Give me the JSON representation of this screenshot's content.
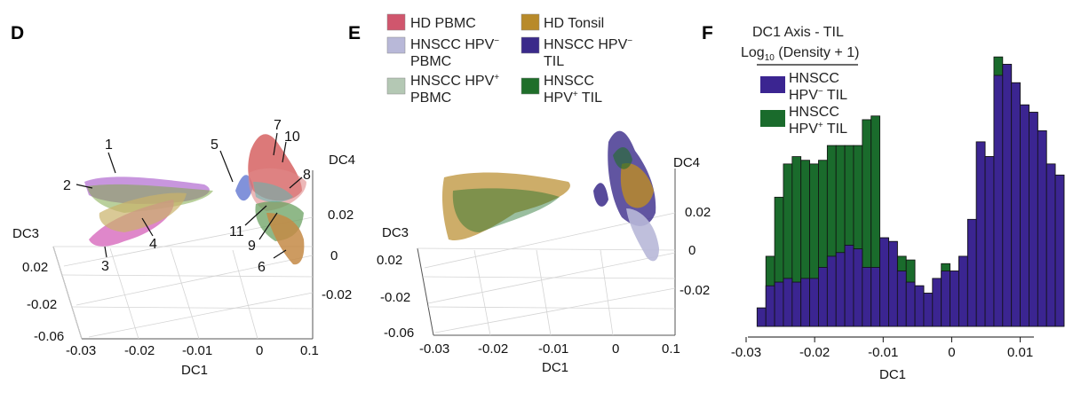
{
  "panels": {
    "d": {
      "letter": "D"
    },
    "e": {
      "letter": "E"
    },
    "f": {
      "letter": "F"
    }
  },
  "axes3d": {
    "dc1_label": "DC1",
    "dc3_label": "DC3",
    "dc4_label": "DC4",
    "dc1_ticks": [
      "-0.03",
      "-0.02",
      "-0.01",
      "0",
      "0.1"
    ],
    "dc3_ticks": [
      "0.02",
      "-0.02",
      "-0.06"
    ],
    "dc4_ticks": [
      "0.02",
      "0",
      "-0.02"
    ]
  },
  "cluster_labels": [
    "1",
    "2",
    "3",
    "4",
    "5",
    "6",
    "7",
    "8",
    "9",
    "10",
    "11"
  ],
  "legend_e": {
    "hd_pbmc": {
      "label": "HD PBMC",
      "color": "#d0566d"
    },
    "hd_tonsil": {
      "label": "HD Tonsil",
      "color": "#b88a2a"
    },
    "hpvneg_pbmc": {
      "line1": "HNSCC HPV",
      "sup": "−",
      "line2": "PBMC",
      "color": "#b8b8d8"
    },
    "hpvneg_til": {
      "line1": "HNSCC HPV",
      "sup": "−",
      "line2": "TIL",
      "color": "#3a2a8a"
    },
    "hpvpos_pbmc": {
      "line1": "HNSCC HPV",
      "sup": "+",
      "line2": "PBMC",
      "color": "#b4c8b4"
    },
    "hpvpos_til": {
      "line1": "HNSCC",
      "line2": "HPV",
      "sup": "+",
      "line2b": " TIL",
      "color": "#1f6e2a"
    }
  },
  "chart_data": {
    "type": "bar",
    "title": "DC1 Axis - TIL",
    "subtitle_pre": "Log",
    "subtitle_sub": "10",
    "subtitle_post": " (Density + 1)",
    "xlabel": "DC1",
    "ylabel": "",
    "xlim": [
      -0.03,
      0.012
    ],
    "x_ticks": [
      "-0.03",
      "-0.02",
      "-0.01",
      "0",
      "0.01"
    ],
    "legend": [
      {
        "line1": "HNSCC",
        "line2": "HPV",
        "sup": "−",
        "line2b": " TIL",
        "color": "#3b2591"
      },
      {
        "line1": "HNSCC",
        "line2": "HPV",
        "sup": "+",
        "line2b": " TIL",
        "color": "#1a6b2c"
      }
    ],
    "bin_width": 0.00128,
    "bin_start": -0.0284,
    "series": [
      {
        "name": "HNSCC HPV− TIL",
        "color": "#3b2591",
        "values": [
          0.5,
          1.1,
          1.2,
          1.3,
          1.2,
          1.3,
          1.3,
          1.6,
          1.9,
          2.0,
          2.2,
          2.1,
          1.6,
          1.6,
          2.4,
          2.3,
          1.5,
          1.2,
          1.1,
          0.9,
          1.3,
          1.5,
          1.5,
          1.9,
          2.9,
          5.0,
          4.6,
          6.8,
          7.1,
          6.6,
          6.0,
          5.8,
          5.3,
          4.4,
          4.1
        ]
      },
      {
        "name": "HNSCC HPV+ TIL",
        "color": "#1a6b2c",
        "values": [
          0.5,
          1.9,
          3.5,
          4.4,
          4.6,
          4.5,
          4.4,
          4.5,
          4.9,
          4.9,
          4.9,
          4.9,
          5.6,
          5.7,
          2.4,
          2.3,
          1.9,
          1.8,
          1.1,
          0.9,
          1.3,
          1.7,
          1.5,
          1.8,
          1.4,
          5.0,
          4.6,
          7.3,
          7.1,
          6.6,
          6.0,
          5.8,
          5.3,
          4.4,
          4.1
        ]
      }
    ]
  }
}
